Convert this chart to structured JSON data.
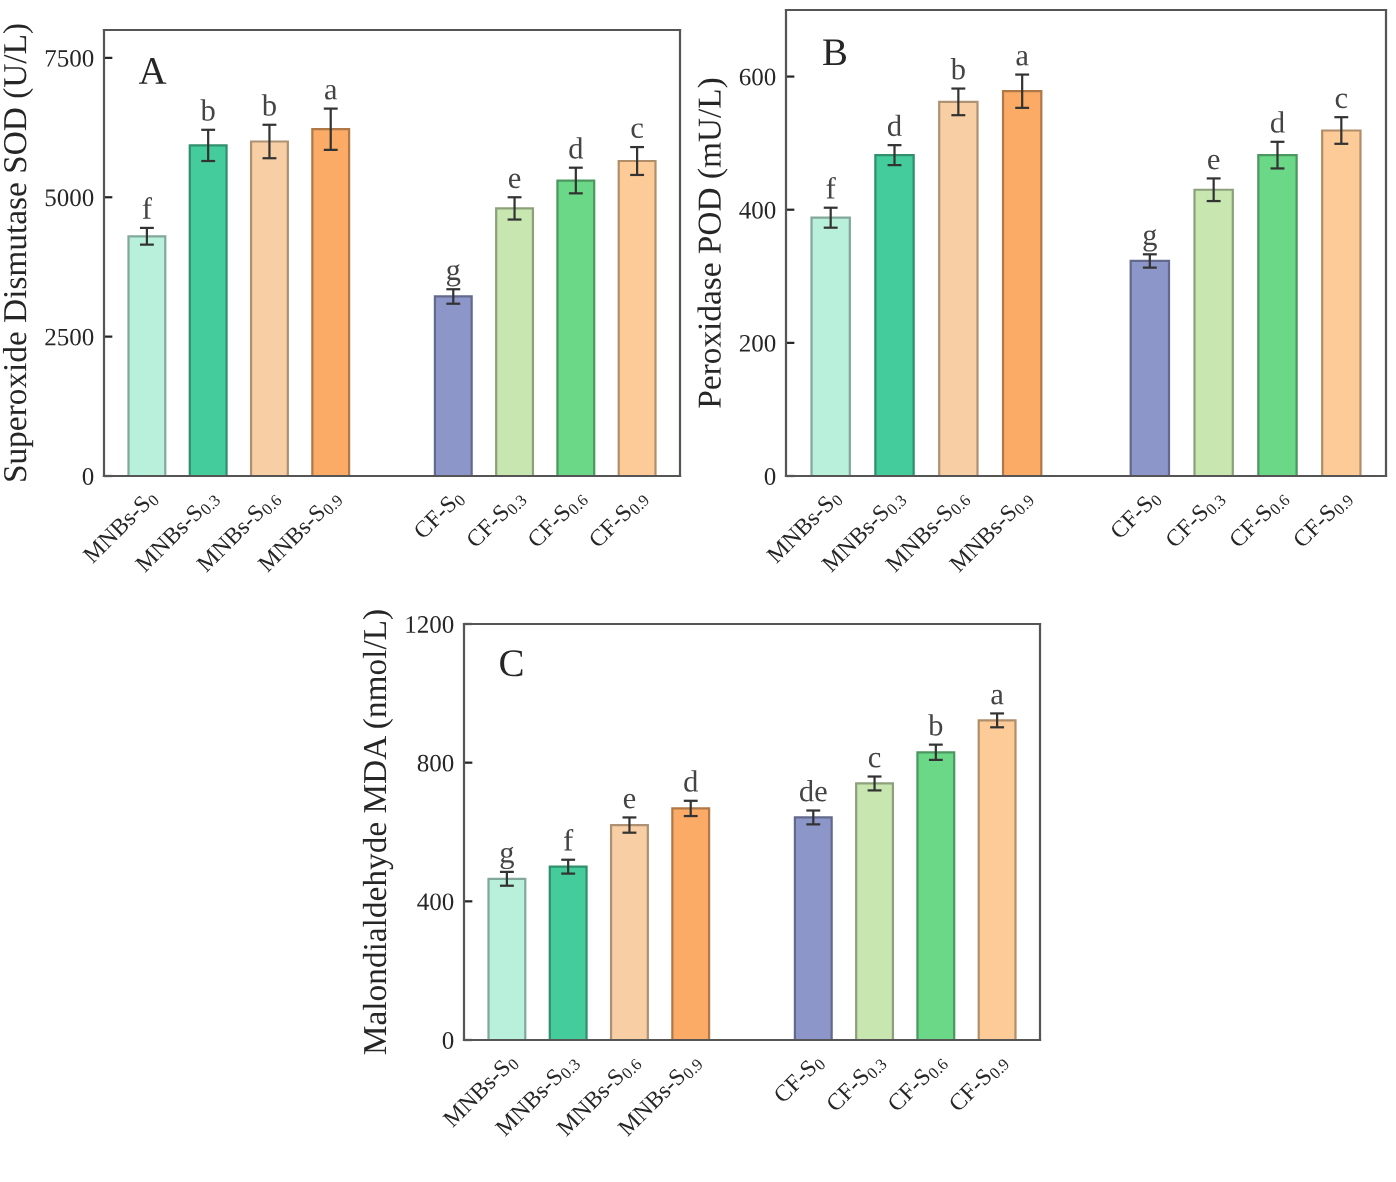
{
  "chart_data": [
    {
      "type": "bar",
      "ylabel": "Superoxide Dismutase SOD (U/L)",
      "categories": [
        "MNBs-S$_{0}$",
        "MNBs-S$_{0.3}$",
        "MNBs-S$_{0.6}$",
        "MNBs-S$_{0.9}$",
        null,
        "CF-S$_{0}$",
        "CF-S$_{0.3}$",
        "CF-S$_{0.6}$",
        "CF-S$_{0.9}$"
      ],
      "values": [
        4300,
        5930,
        6000,
        6220,
        null,
        3220,
        4800,
        5300,
        5650
      ],
      "errors": [
        150,
        280,
        300,
        370,
        null,
        130,
        200,
        230,
        250
      ],
      "colors": [
        "#b8f0dc",
        "#45cc9c",
        "#f8cfa4",
        "#fbab66",
        null,
        "#8d96c8",
        "#c8e6b0",
        "#6bd888",
        "#fdcb97"
      ],
      "ylim": [
        0,
        8000
      ],
      "yticks": [
        0,
        2500,
        5000,
        7500
      ],
      "grid": false,
      "legend": false,
      "annotations": [
        "A",
        {
          "text": "f",
          "x": "MNBs-S$_{0}$",
          "y": 4450
        },
        {
          "text": "b",
          "x": "MNBs-S$_{0.3}$",
          "y": 6210
        },
        {
          "text": "b",
          "x": "MNBs-S$_{0.6}$",
          "y": 6300
        },
        {
          "text": "a",
          "x": "MNBs-S$_{0.9}$",
          "y": 6590
        },
        {
          "text": "g",
          "x": "CF-S$_{0}$",
          "y": 3350
        },
        {
          "text": "e",
          "x": "CF-S$_{0.3}$",
          "y": 5000
        },
        {
          "text": "d",
          "x": "CF-S$_{0.6}$",
          "y": 5530
        },
        {
          "text": "c",
          "x": "CF-S$_{0.9}$",
          "y": 5900
        }
      ]
    },
    {
      "type": "bar",
      "ylabel": "Peroxidase POD (mU/L)",
      "categories": [
        "MNBs-S$_{0}$",
        "MNBs-S$_{0.3}$",
        "MNBs-S$_{0.6}$",
        "MNBs-S$_{0.9}$",
        null,
        "CF-S$_{0}$",
        "CF-S$_{0.3}$",
        "CF-S$_{0.6}$",
        "CF-S$_{0.9}$"
      ],
      "values": [
        388,
        482,
        562,
        578,
        null,
        323,
        430,
        482,
        519
      ],
      "errors": [
        15,
        15,
        20,
        25,
        null,
        10,
        17,
        20,
        20
      ],
      "colors": [
        "#b8f0dc",
        "#45cc9c",
        "#f8cfa4",
        "#fbab66",
        null,
        "#8d96c8",
        "#c8e6b0",
        "#6bd888",
        "#fdcb97"
      ],
      "ylim": [
        0,
        700
      ],
      "yticks": [
        0,
        200,
        400,
        600
      ],
      "grid": false,
      "legend": false,
      "annotations": [
        "B",
        {
          "text": "f",
          "x": "MNBs-S$_{0}$",
          "y": 403
        },
        {
          "text": "d",
          "x": "MNBs-S$_{0.3}$",
          "y": 497
        },
        {
          "text": "b",
          "x": "MNBs-S$_{0.6}$",
          "y": 582
        },
        {
          "text": "a",
          "x": "MNBs-S$_{0.9}$",
          "y": 603
        },
        {
          "text": "g",
          "x": "CF-S$_{0}$",
          "y": 333
        },
        {
          "text": "e",
          "x": "CF-S$_{0.3}$",
          "y": 447
        },
        {
          "text": "d",
          "x": "CF-S$_{0.6}$",
          "y": 502
        },
        {
          "text": "c",
          "x": "CF-S$_{0.9}$",
          "y": 539
        }
      ]
    },
    {
      "type": "bar",
      "ylabel": "Malondialdehyde MDA (nmol/L)",
      "categories": [
        "MNBs-S$_{0}$",
        "MNBs-S$_{0.3}$",
        "MNBs-S$_{0.6}$",
        "MNBs-S$_{0.9}$",
        null,
        "CF-S$_{0}$",
        "CF-S$_{0.3}$",
        "CF-S$_{0.6}$",
        "CF-S$_{0.9}$"
      ],
      "values": [
        465,
        500,
        620,
        668,
        null,
        642,
        740,
        830,
        922
      ],
      "errors": [
        20,
        20,
        22,
        22,
        null,
        20,
        20,
        22,
        20
      ],
      "colors": [
        "#b8f0dc",
        "#45cc9c",
        "#f8cfa4",
        "#fbab66",
        null,
        "#8d96c8",
        "#c8e6b0",
        "#6bd888",
        "#fdcb97"
      ],
      "ylim": [
        0,
        1200
      ],
      "yticks": [
        0,
        400,
        800,
        1200
      ],
      "grid": false,
      "legend": false,
      "annotations": [
        "C",
        {
          "text": "g",
          "x": "MNBs-S$_{0}$",
          "y": 485
        },
        {
          "text": "f",
          "x": "MNBs-S$_{0.3}$",
          "y": 520
        },
        {
          "text": "e",
          "x": "MNBs-S$_{0.6}$",
          "y": 642
        },
        {
          "text": "d",
          "x": "MNBs-S$_{0.9}$",
          "y": 690
        },
        {
          "text": "de",
          "x": "CF-S$_{0}$",
          "y": 662
        },
        {
          "text": "c",
          "x": "CF-S$_{0.3}$",
          "y": 760
        },
        {
          "text": "b",
          "x": "CF-S$_{0.6}$",
          "y": 852
        },
        {
          "text": "a",
          "x": "CF-S$_{0.9}$",
          "y": 942
        }
      ]
    }
  ]
}
